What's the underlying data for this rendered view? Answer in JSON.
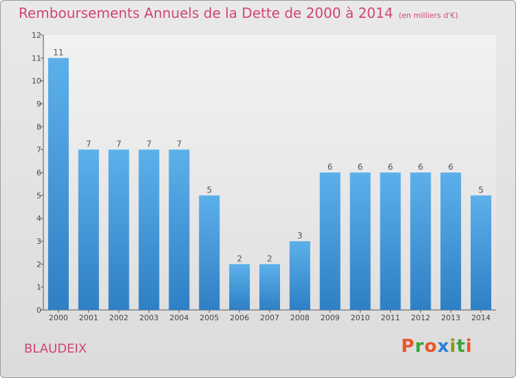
{
  "chart_data": {
    "type": "bar",
    "title": "Remboursements Annuels de la Dette de 2000 à 2014",
    "unit_note": "(en milliers d'€)",
    "categories": [
      "2000",
      "2001",
      "2002",
      "2003",
      "2004",
      "2005",
      "2006",
      "2007",
      "2008",
      "2009",
      "2010",
      "2011",
      "2012",
      "2013",
      "2014"
    ],
    "values": [
      11,
      7,
      7,
      7,
      7,
      5,
      2,
      2,
      3,
      6,
      6,
      6,
      6,
      6,
      5
    ],
    "ylim": [
      0,
      12
    ],
    "yticks": [
      "0",
      "1",
      "2",
      "3",
      "4",
      "5",
      "6",
      "7",
      "8",
      "9",
      "10",
      "11",
      "12"
    ],
    "bar_color": "#4f9fdc",
    "grid": false
  },
  "commune": "BLAUDEIX",
  "logo": {
    "text": "Proxiti",
    "colors": [
      "#e8562a",
      "#3aa43a",
      "#e8562a",
      "#2e7fd6",
      "#8a9a1a",
      "#3aa43a",
      "#e8562a"
    ]
  }
}
